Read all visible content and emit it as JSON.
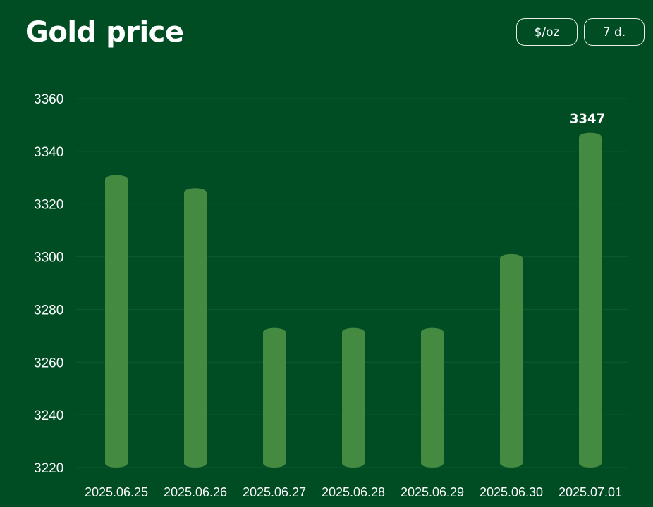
{
  "header": {
    "title": "Gold price",
    "unit_label": "$/oz",
    "range_label": "7 d."
  },
  "colors": {
    "background": "#004d24",
    "bar": "#448a40",
    "grid": "#0f5a2c",
    "text": "#ffffff"
  },
  "chart_data": {
    "type": "bar",
    "categories": [
      "2025.06.25",
      "2025.06.26",
      "2025.06.27",
      "2025.06.28",
      "2025.06.29",
      "2025.06.30",
      "2025.07.01"
    ],
    "values": [
      3331,
      3326,
      3273,
      3273,
      3273,
      3301,
      3347
    ],
    "ylim": [
      3220,
      3360
    ],
    "yticks": [
      3220,
      3240,
      3260,
      3280,
      3300,
      3320,
      3340,
      3360
    ],
    "data_labels": [
      {
        "index": 6,
        "text": "3347"
      }
    ],
    "grid": true,
    "legend": "none"
  }
}
